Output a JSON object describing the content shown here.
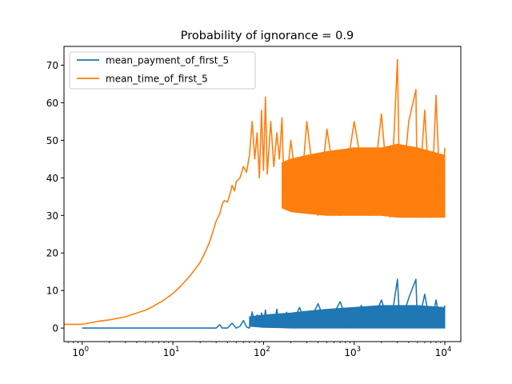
{
  "chart_data": {
    "type": "line",
    "title": "Probability of ignorance = 0.9",
    "xlabel": "",
    "ylabel": "",
    "x_scale": "log",
    "xlim": [
      0.63,
      15000
    ],
    "ylim": [
      -3.6,
      75
    ],
    "x_ticks": [
      {
        "value": 1,
        "label": "10^0",
        "base": "10",
        "exp": "0"
      },
      {
        "value": 10,
        "label": "10^1",
        "base": "10",
        "exp": "1"
      },
      {
        "value": 100,
        "label": "10^2",
        "base": "10",
        "exp": "2"
      },
      {
        "value": 1000,
        "label": "10^3",
        "base": "10",
        "exp": "3"
      },
      {
        "value": 10000,
        "label": "10^4",
        "base": "10",
        "exp": "4"
      }
    ],
    "y_ticks": [
      0,
      10,
      20,
      30,
      40,
      50,
      60,
      70
    ],
    "grid": false,
    "legend_position": "upper-left",
    "series": [
      {
        "name": "mean_payment_of_first_5",
        "color": "#1f77b4",
        "points": [
          [
            1,
            0
          ],
          [
            2,
            0
          ],
          [
            5,
            0
          ],
          [
            10,
            0
          ],
          [
            20,
            0
          ],
          [
            30,
            0
          ],
          [
            33,
            0.9
          ],
          [
            35,
            0
          ],
          [
            40,
            0
          ],
          [
            45,
            1.3
          ],
          [
            50,
            0
          ],
          [
            55,
            0.5
          ],
          [
            60,
            2.0
          ],
          [
            65,
            0.3
          ],
          [
            70,
            0
          ],
          [
            75,
            4.3
          ],
          [
            80,
            1.0
          ],
          [
            85,
            3.5
          ],
          [
            90,
            0.8
          ],
          [
            95,
            4.0
          ],
          [
            100,
            1.0
          ],
          [
            105,
            4.8
          ],
          [
            110,
            0.6
          ],
          [
            120,
            3.5
          ],
          [
            130,
            0.5
          ],
          [
            140,
            5.0
          ],
          [
            150,
            1.0
          ],
          [
            160,
            3.0
          ],
          [
            170,
            0.3
          ],
          [
            180,
            4.2
          ],
          [
            200,
            0.5
          ],
          [
            250,
            5.5
          ],
          [
            300,
            0.3
          ],
          [
            400,
            6.5
          ],
          [
            500,
            0.4
          ],
          [
            700,
            7.0
          ],
          [
            900,
            0.2
          ],
          [
            1200,
            6.0
          ],
          [
            1500,
            0.3
          ],
          [
            2000,
            7.5
          ],
          [
            2500,
            0.2
          ],
          [
            3000,
            13.0
          ],
          [
            3200,
            0.3
          ],
          [
            4000,
            8.0
          ],
          [
            4800,
            13.0
          ],
          [
            5000,
            0.2
          ],
          [
            6000,
            9.0
          ],
          [
            7000,
            0.3
          ],
          [
            8000,
            7.5
          ],
          [
            9000,
            0.2
          ],
          [
            10000,
            6.0
          ]
        ],
        "band": {
          "x": [
            70,
            100,
            150,
            200,
            300,
            500,
            1000,
            2000,
            3000,
            5000,
            10000
          ],
          "low": [
            0.5,
            0.2,
            0.1,
            0,
            0,
            0,
            0,
            0,
            0,
            0,
            0
          ],
          "high": [
            3.0,
            3.5,
            3.8,
            4.0,
            4.5,
            5.0,
            5.5,
            6.0,
            6.0,
            6.0,
            5.5
          ]
        }
      },
      {
        "name": "mean_time_of_first_5",
        "color": "#ff7f0e",
        "points": [
          [
            0.63,
            1
          ],
          [
            1,
            1
          ],
          [
            1.5,
            1.8
          ],
          [
            2,
            2.2
          ],
          [
            3,
            3.0
          ],
          [
            4,
            4.0
          ],
          [
            5,
            4.8
          ],
          [
            6,
            5.7
          ],
          [
            8,
            7.5
          ],
          [
            10,
            9.2
          ],
          [
            12,
            11.0
          ],
          [
            15,
            13.5
          ],
          [
            18,
            16.0
          ],
          [
            20,
            17.5
          ],
          [
            22,
            19.5
          ],
          [
            25,
            22.5
          ],
          [
            28,
            26.0
          ],
          [
            30,
            28.5
          ],
          [
            33,
            30.5
          ],
          [
            35,
            33.0
          ],
          [
            37,
            34.0
          ],
          [
            40,
            33.5
          ],
          [
            43,
            36.0
          ],
          [
            45,
            38.0
          ],
          [
            48,
            36.5
          ],
          [
            50,
            39.0
          ],
          [
            55,
            40.0
          ],
          [
            60,
            43.0
          ],
          [
            65,
            41.5
          ],
          [
            70,
            46.0
          ],
          [
            75,
            55.0
          ],
          [
            80,
            45.0
          ],
          [
            85,
            52.0
          ],
          [
            90,
            40.0
          ],
          [
            95,
            58.0
          ],
          [
            100,
            42.0
          ],
          [
            105,
            61.5
          ],
          [
            110,
            41.0
          ],
          [
            120,
            55.0
          ],
          [
            130,
            43.0
          ],
          [
            140,
            52.0
          ],
          [
            150,
            45.0
          ],
          [
            160,
            56.0
          ],
          [
            170,
            33.0
          ],
          [
            200,
            50.0
          ],
          [
            250,
            31.0
          ],
          [
            300,
            55.0
          ],
          [
            400,
            30.0
          ],
          [
            500,
            53.0
          ],
          [
            700,
            30.0
          ],
          [
            1000,
            55.0
          ],
          [
            1500,
            30.0
          ],
          [
            2000,
            57.0
          ],
          [
            2500,
            29.5
          ],
          [
            3000,
            71.5
          ],
          [
            3200,
            30.0
          ],
          [
            4000,
            55.0
          ],
          [
            4800,
            63.5
          ],
          [
            5000,
            29.5
          ],
          [
            6000,
            58.0
          ],
          [
            7000,
            29.5
          ],
          [
            8000,
            62.0
          ],
          [
            9000,
            30.0
          ],
          [
            10000,
            48.0
          ]
        ],
        "band": {
          "x": [
            160,
            200,
            300,
            500,
            1000,
            2000,
            3000,
            5000,
            10000
          ],
          "low": [
            32.0,
            31.0,
            30.5,
            30.0,
            30.0,
            30.0,
            29.5,
            29.5,
            29.5
          ],
          "high": [
            44.0,
            45.0,
            46.0,
            47.0,
            48.0,
            48.0,
            49.0,
            48.0,
            46.0
          ]
        }
      }
    ]
  }
}
